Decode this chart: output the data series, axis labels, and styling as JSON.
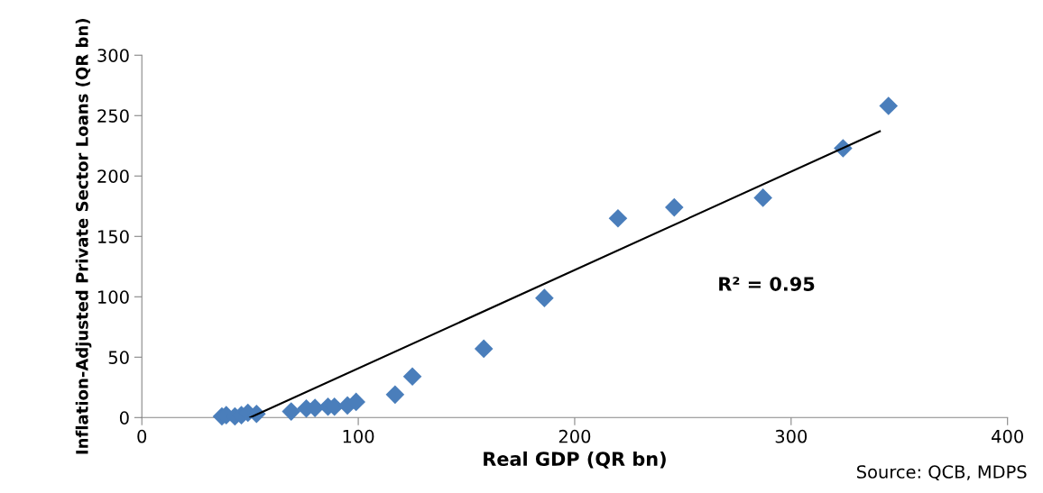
{
  "chart_data": {
    "type": "scatter",
    "xlabel": "Real GDP (QR bn)",
    "ylabel": "Inflation-Adjusted Private Sector Loans (QR bn)",
    "xlim": [
      0,
      400
    ],
    "xticks": [
      0,
      100,
      200,
      300,
      400
    ],
    "ylim": [
      0,
      300
    ],
    "yticks": [
      0,
      50,
      100,
      150,
      200,
      250,
      300
    ],
    "grid": false,
    "legend": false,
    "series": [
      {
        "marker": "diamond",
        "color": "#4a7ebb",
        "x": [
          37,
          39,
          43,
          46,
          49,
          53,
          69,
          76,
          80,
          86,
          89,
          95,
          99,
          117,
          125,
          158,
          186,
          220,
          246,
          287,
          324,
          345
        ],
        "values": [
          1,
          2,
          1,
          2,
          4,
          3,
          5,
          7.5,
          8,
          9,
          9,
          10,
          13,
          19,
          34,
          57,
          99,
          165,
          174,
          182,
          223,
          258
        ]
      },
      {
        "type": "line",
        "marker": "none",
        "color": "#000000",
        "x": [
          50,
          341
        ],
        "values": [
          0,
          237
        ]
      }
    ],
    "annotations": [
      "R² = 0.95",
      "Source: QCB, MDPS"
    ]
  }
}
